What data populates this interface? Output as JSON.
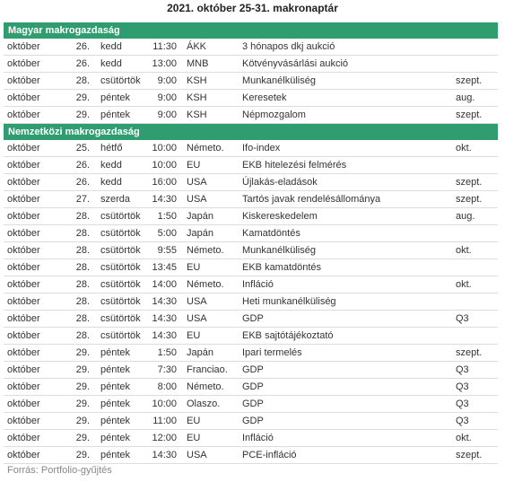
{
  "title": "2021. október 25-31. makronaptár",
  "sections": [
    {
      "title": "Magyar makrogazdaság",
      "rows": [
        [
          "október",
          "26.",
          "kedd",
          "11:30",
          "ÁKK",
          "3 hónapos dkj aukció"
        ],
        [
          "október",
          "26.",
          "kedd",
          "13:00",
          "MNB",
          "Kötvényvásárlási aukció"
        ],
        [
          "október",
          "28.",
          "csütörtök",
          "9:00",
          "KSH",
          "Munkanélküliség",
          "szept."
        ],
        [
          "október",
          "29.",
          "péntek",
          "9:00",
          "KSH",
          "Keresetek",
          "aug."
        ],
        [
          "október",
          "29.",
          "péntek",
          "9:00",
          "KSH",
          "Népmozgalom",
          "szept."
        ]
      ]
    },
    {
      "title": "Nemzetközi makrogazdaság",
      "rows": [
        [
          "október",
          "25.",
          "hétfő",
          "10:00",
          "Németo.",
          "Ifo-index",
          "okt."
        ],
        [
          "október",
          "26.",
          "kedd",
          "10:00",
          "EU",
          "EKB hitelezési felmérés"
        ],
        [
          "október",
          "26.",
          "kedd",
          "16:00",
          "USA",
          "Újlakás-eladások",
          "szept."
        ],
        [
          "október",
          "27.",
          "szerda",
          "14:30",
          "USA",
          "Tartós javak rendelésállománya",
          "szept."
        ],
        [
          "október",
          "28.",
          "csütörtök",
          "1:50",
          "Japán",
          "Kiskereskedelem",
          "aug."
        ],
        [
          "október",
          "28.",
          "csütörtök",
          "5:00",
          "Japán",
          "Kamatdöntés"
        ],
        [
          "október",
          "28.",
          "csütörtök",
          "9:55",
          "Németo.",
          "Munkanélküliség",
          "okt."
        ],
        [
          "október",
          "28.",
          "csütörtök",
          "13:45",
          "EU",
          "EKB kamatdöntés"
        ],
        [
          "október",
          "28.",
          "csütörtök",
          "14:00",
          "Németo.",
          "Infláció",
          "okt."
        ],
        [
          "október",
          "28.",
          "csütörtök",
          "14:30",
          "USA",
          "Heti munkanélküliség"
        ],
        [
          "október",
          "28.",
          "csütörtök",
          "14:30",
          "USA",
          "GDP",
          "Q3"
        ],
        [
          "október",
          "28.",
          "csütörtök",
          "14:30",
          "EU",
          "EKB sajtótájékoztató"
        ],
        [
          "október",
          "29.",
          "péntek",
          "1:50",
          "Japán",
          "Ipari termelés",
          "szept."
        ],
        [
          "október",
          "29.",
          "péntek",
          "7:30",
          "Franciao.",
          "GDP",
          "Q3"
        ],
        [
          "október",
          "29.",
          "péntek",
          "8:00",
          "Németo.",
          "GDP",
          "Q3"
        ],
        [
          "október",
          "29.",
          "péntek",
          "10:00",
          "Olaszo.",
          "GDP",
          "Q3"
        ],
        [
          "október",
          "29.",
          "péntek",
          "11:00",
          "EU",
          "GDP",
          "Q3"
        ],
        [
          "október",
          "29.",
          "péntek",
          "12:00",
          "EU",
          "Infláció",
          "okt."
        ],
        [
          "október",
          "29.",
          "péntek",
          "14:30",
          "USA",
          "PCE-infláció",
          "szept."
        ]
      ]
    }
  ],
  "source": "Forrás: Portfolio-gyűjtés"
}
